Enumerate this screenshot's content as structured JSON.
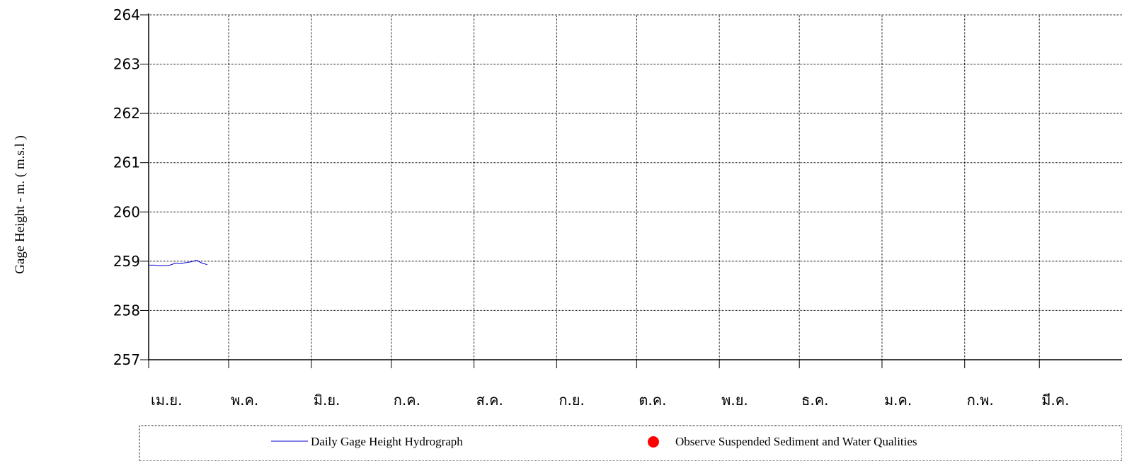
{
  "chart_data": {
    "type": "line",
    "ylabel": "Gage Height  -  m.  ( m.s.l )",
    "xlabel": "",
    "ylim": [
      257,
      264
    ],
    "y_ticks": [
      "257",
      "258",
      "259",
      "260",
      "261",
      "262",
      "263",
      "264"
    ],
    "x_month_labels": [
      "เม.ย.",
      "พ.ค.",
      "มิ.ย.",
      "ก.ค.",
      "ส.ค.",
      "ก.ย.",
      "ต.ค.",
      "พ.ย.",
      "ธ.ค.",
      "ม.ค.",
      "ก.พ.",
      "มี.ค."
    ],
    "x_day_range": [
      0,
      365
    ],
    "month_start_days": [
      0,
      30,
      61,
      91,
      122,
      153,
      183,
      214,
      244,
      275,
      306,
      334
    ],
    "grid": true,
    "legend_position": "bottom",
    "series": [
      {
        "name": "Daily Gage Height Hydrograph",
        "color": "#0000cc",
        "x": [
          0,
          2,
          4,
          6,
          8,
          10,
          12,
          14,
          16,
          18,
          20,
          22
        ],
        "y": [
          258.92,
          258.92,
          258.91,
          258.91,
          258.92,
          258.96,
          258.95,
          258.97,
          258.99,
          259.02,
          258.96,
          258.93
        ]
      },
      {
        "name": "Observe Suspended Sediment and Water Qualities",
        "color": "#ff0000",
        "marker": "circle",
        "x": [],
        "y": []
      }
    ]
  }
}
